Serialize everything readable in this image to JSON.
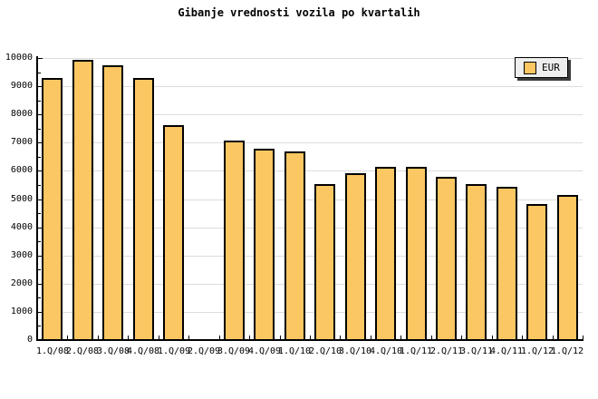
{
  "title": "Gibanje vrednosti vozila po kvartalih",
  "legend": {
    "label": "EUR"
  },
  "colors": {
    "bar_fill": "#FBC763",
    "bar_border": "#000000",
    "grid_line": "#DCDCDC",
    "axis": "#000000",
    "background": "#FFFFFF",
    "legend_bg": "#EEEEEE",
    "legend_border": "#000000",
    "legend_shadow": "#3C3C3C",
    "text": "#000000"
  },
  "chart_data": {
    "type": "bar",
    "title": "Gibanje vrednosti vozila po kvartalih",
    "categories": [
      "1.Q/08",
      "2.Q/08",
      "3.Q/08",
      "4.Q/08",
      "1.Q/09",
      "2.Q/09",
      "3.Q/09",
      "4.Q/09",
      "1.Q/10",
      "2.Q/10",
      "3.Q/10",
      "4.Q/10",
      "1.Q/11",
      "2.Q/11",
      "3.Q/11",
      "4.Q/11",
      "1.Q/12",
      "1.Q/12"
    ],
    "series": [
      {
        "name": "EUR",
        "values": [
          9250,
          9900,
          9700,
          9250,
          7600,
          null,
          7050,
          6750,
          6650,
          5500,
          5900,
          6100,
          6100,
          5750,
          5500,
          5400,
          4800,
          5100
        ]
      }
    ],
    "ylim": [
      0,
      10000
    ],
    "ytick_step": 1000,
    "ytick_minor_step": 500,
    "ytick_labels": [
      "0",
      "1000",
      "2000",
      "3000",
      "4000",
      "5000",
      "6000",
      "7000",
      "8000",
      "9000",
      "10000"
    ],
    "xlabel": "",
    "ylabel": "",
    "grid": true,
    "legend_position": "top-right"
  }
}
